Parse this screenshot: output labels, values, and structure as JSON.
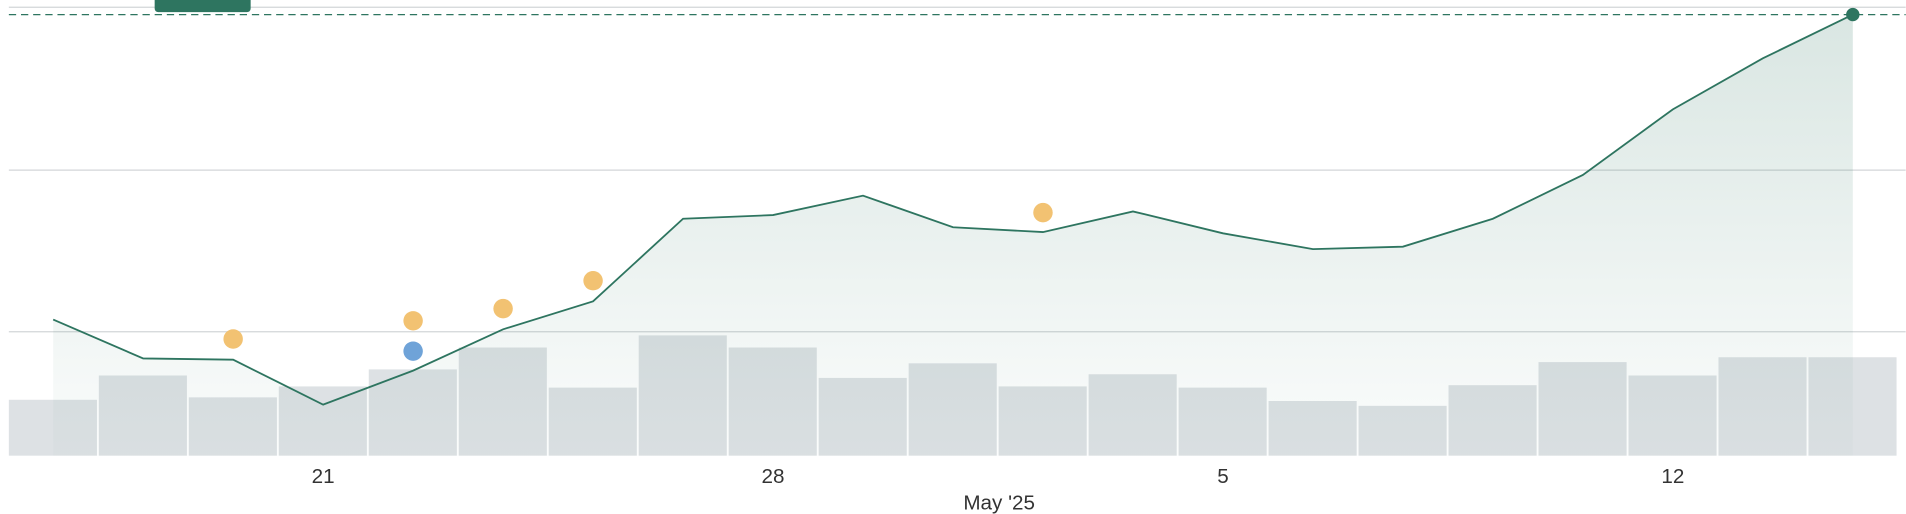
{
  "chart_data": {
    "type": "line",
    "categories": [
      null,
      null,
      null,
      "21",
      null,
      null,
      null,
      null,
      "28",
      null,
      null,
      null,
      null,
      "5",
      null,
      null,
      null,
      null,
      "12",
      null,
      null
    ],
    "period_label": "May '25",
    "ylim": [
      0,
      375
    ],
    "gridlines": [
      102,
      235,
      369
    ],
    "series": [
      {
        "kind": "line",
        "color": "#2e7560",
        "values": [
          112,
          80,
          79,
          42,
          70,
          104,
          127,
          195,
          198,
          214,
          188,
          184,
          201,
          183,
          170,
          172,
          195,
          231,
          285,
          327,
          363
        ]
      },
      {
        "kind": "volume",
        "color": "#dde1e4",
        "values": [
          46,
          66,
          48,
          57,
          71,
          89,
          56,
          99,
          89,
          64,
          76,
          57,
          67,
          56,
          45,
          41,
          58,
          77,
          66,
          81,
          81
        ]
      },
      {
        "kind": "dots",
        "color": "#f2c272",
        "values": [
          null,
          null,
          96,
          null,
          111,
          121,
          144,
          null,
          null,
          null,
          null,
          200,
          null,
          null,
          null,
          null,
          null,
          null,
          null,
          null,
          null
        ]
      },
      {
        "kind": "dots",
        "color": "#6fa3d8",
        "values": [
          null,
          null,
          null,
          null,
          86,
          null,
          null,
          null,
          null,
          null,
          null,
          null,
          null,
          null,
          null,
          null,
          null,
          null,
          null,
          null,
          null
        ]
      }
    ]
  }
}
